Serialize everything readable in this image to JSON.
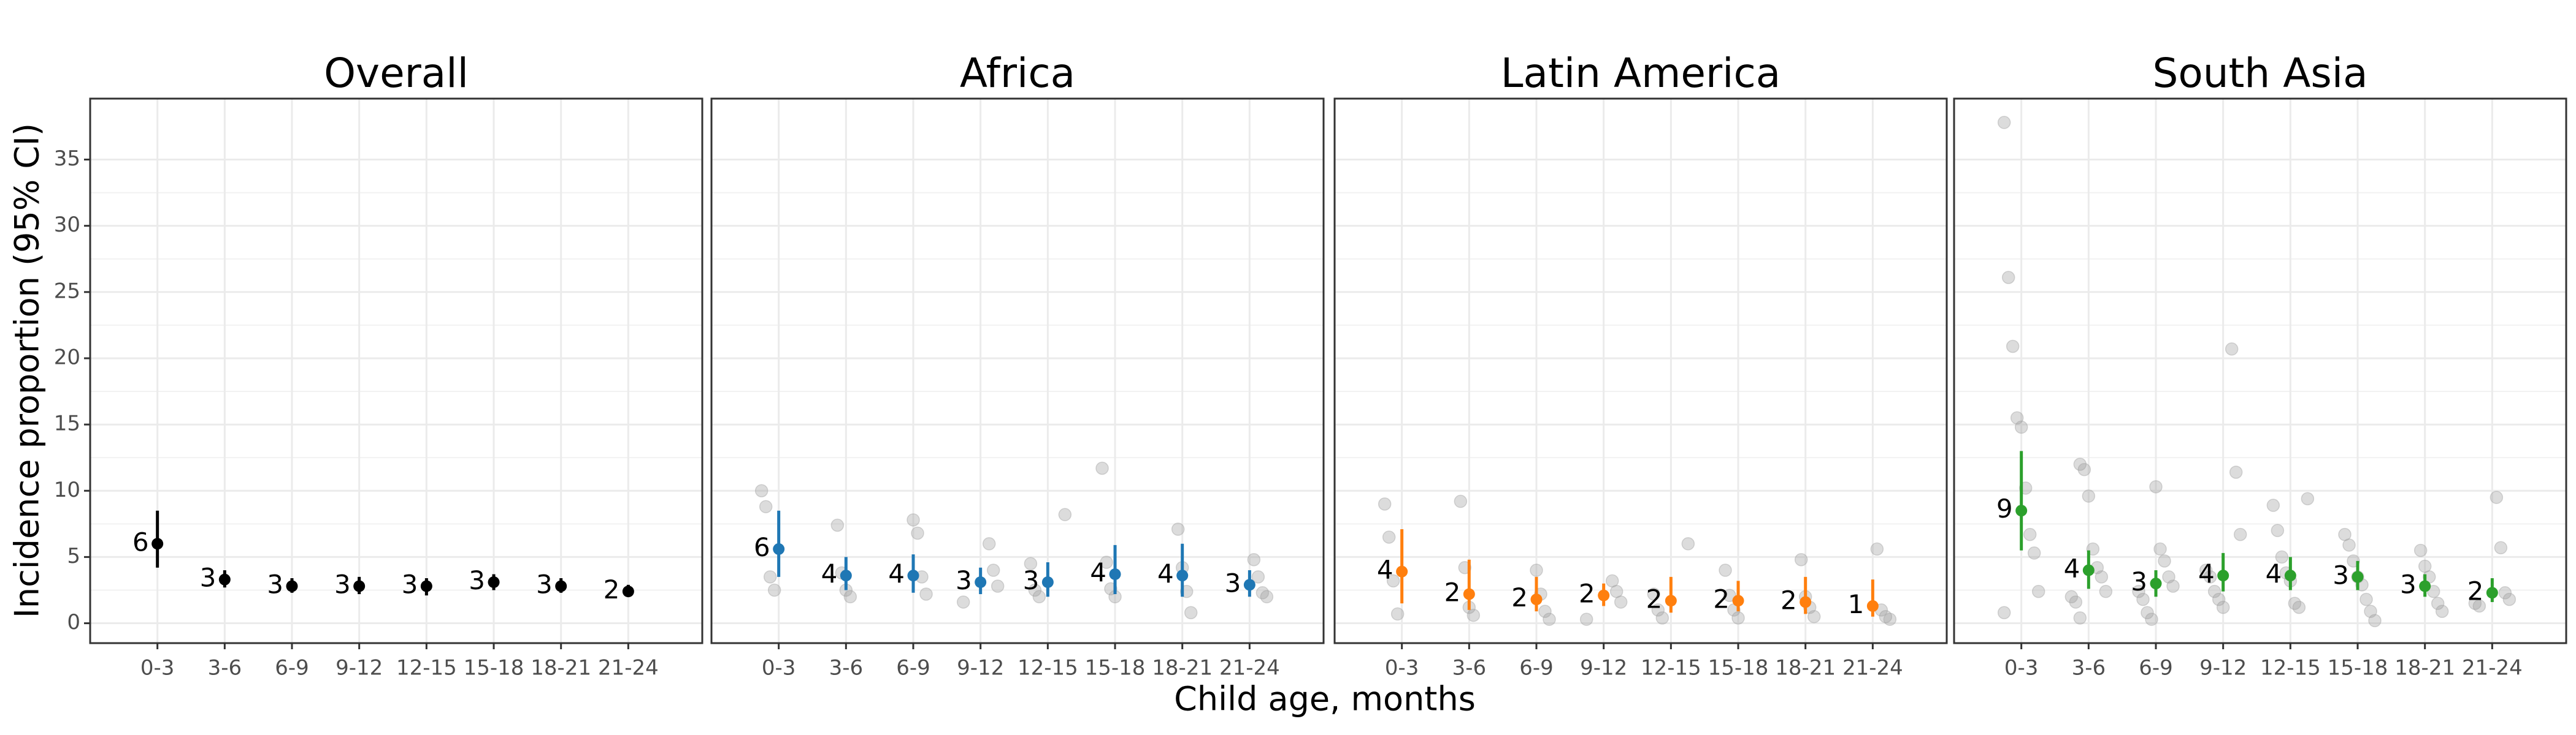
{
  "ylabel": "Incidence proportion (95% CI)",
  "xlabel": "Child age, months",
  "chart_data": [
    {
      "type": "errorbar",
      "title": "Overall",
      "color": "#000000",
      "categories": [
        "0-3",
        "3-6",
        "6-9",
        "9-12",
        "12-15",
        "15-18",
        "18-21",
        "21-24"
      ],
      "values": [
        6.0,
        3.3,
        2.8,
        2.8,
        2.8,
        3.1,
        2.8,
        2.4
      ],
      "value_labels": [
        "6",
        "3",
        "3",
        "3",
        "3",
        "3",
        "3",
        "2"
      ],
      "ci_lower": [
        4.2,
        2.7,
        2.3,
        2.2,
        2.1,
        2.5,
        2.3,
        2.0
      ],
      "ci_upper": [
        8.5,
        4.0,
        3.4,
        3.5,
        3.4,
        3.7,
        3.4,
        2.9
      ],
      "studies": [
        [],
        [],
        [],
        [],
        [],
        [],
        [],
        []
      ],
      "ylim": [
        -1.5,
        39.6
      ],
      "yticks": [
        0,
        5,
        10,
        15,
        20,
        25,
        30,
        35
      ],
      "grid": true
    },
    {
      "type": "errorbar",
      "title": "Africa",
      "color": "#1f77b4",
      "categories": [
        "0-3",
        "3-6",
        "6-9",
        "9-12",
        "12-15",
        "15-18",
        "18-21",
        "21-24"
      ],
      "values": [
        5.6,
        3.6,
        3.6,
        3.1,
        3.1,
        3.7,
        3.6,
        2.9
      ],
      "value_labels": [
        "6",
        "4",
        "4",
        "3",
        "3",
        "4",
        "4",
        "3"
      ],
      "ci_lower": [
        3.5,
        2.5,
        2.3,
        2.2,
        2.0,
        2.2,
        2.0,
        2.0
      ],
      "ci_upper": [
        8.5,
        5.0,
        5.2,
        4.2,
        4.6,
        5.9,
        6.0,
        4.0
      ],
      "studies": [
        [
          10,
          8.8,
          3.5,
          2.5
        ],
        [
          7.4,
          3.8,
          2.5,
          2.0
        ],
        [
          7.8,
          6.8,
          3.5,
          2.2
        ],
        [
          6.0,
          4.0,
          2.8,
          1.6
        ],
        [
          8.2,
          4.5,
          2.5,
          2.0
        ],
        [
          11.7,
          4.6,
          2.6,
          2.0
        ],
        [
          7.1,
          4.2,
          2.4,
          0.8
        ],
        [
          4.8,
          3.5,
          2.3,
          2.0
        ]
      ],
      "ylim": [
        -1.5,
        39.6
      ],
      "yticks": [
        0,
        5,
        10,
        15,
        20,
        25,
        30,
        35
      ],
      "grid": true
    },
    {
      "type": "errorbar",
      "title": "Latin America",
      "color": "#ff7f0e",
      "categories": [
        "0-3",
        "3-6",
        "6-9",
        "9-12",
        "12-15",
        "15-18",
        "18-21",
        "21-24"
      ],
      "values": [
        3.9,
        2.2,
        1.8,
        2.1,
        1.7,
        1.7,
        1.6,
        1.3
      ],
      "value_labels": [
        "4",
        "2",
        "2",
        "2",
        "2",
        "2",
        "2",
        "1"
      ],
      "ci_lower": [
        1.5,
        1.0,
        0.9,
        1.3,
        0.8,
        0.9,
        0.7,
        0.5
      ],
      "ci_upper": [
        7.1,
        4.8,
        3.5,
        3.0,
        3.5,
        3.2,
        3.5,
        3.3
      ],
      "studies": [
        [
          9.0,
          6.5,
          3.2,
          0.7
        ],
        [
          9.2,
          4.2,
          1.2,
          0.6
        ],
        [
          4.0,
          2.2,
          0.9,
          0.3
        ],
        [
          3.2,
          2.4,
          1.6,
          0.3
        ],
        [
          6.0,
          2.2,
          1.0,
          0.4
        ],
        [
          4.0,
          2.1,
          1.0,
          0.4
        ],
        [
          4.8,
          2.0,
          1.2,
          0.5
        ],
        [
          5.6,
          1.0,
          0.5,
          0.3
        ]
      ],
      "ylim": [
        -1.5,
        39.6
      ],
      "yticks": [
        0,
        5,
        10,
        15,
        20,
        25,
        30,
        35
      ],
      "grid": true
    },
    {
      "type": "errorbar",
      "title": "South Asia",
      "color": "#2ca02c",
      "categories": [
        "0-3",
        "3-6",
        "6-9",
        "9-12",
        "12-15",
        "15-18",
        "18-21",
        "21-24"
      ],
      "values": [
        8.5,
        4.0,
        3.0,
        3.6,
        3.6,
        3.5,
        2.8,
        2.3
      ],
      "value_labels": [
        "9",
        "4",
        "3",
        "4",
        "4",
        "3",
        "3",
        "2"
      ],
      "ci_lower": [
        5.5,
        2.6,
        2.0,
        2.4,
        2.5,
        2.5,
        2.0,
        1.6
      ],
      "ci_upper": [
        13.0,
        5.5,
        4.0,
        5.3,
        5.0,
        4.7,
        3.7,
        3.4
      ],
      "studies": [
        [
          37.8,
          26.1,
          20.9,
          15.5,
          14.8,
          10.2,
          6.7,
          5.3,
          2.4,
          0.8
        ],
        [
          12.0,
          11.6,
          9.6,
          5.6,
          4.2,
          3.5,
          2.4,
          2.0,
          1.6,
          0.4
        ],
        [
          10.3,
          5.6,
          4.7,
          3.5,
          2.8,
          2.4,
          1.8,
          0.8,
          0.3
        ],
        [
          20.7,
          11.4,
          6.7,
          4.0,
          3.5,
          2.4,
          1.8,
          1.2
        ],
        [
          9.4,
          8.9,
          7.0,
          5.0,
          3.8,
          3.2,
          1.5,
          1.2
        ],
        [
          6.7,
          5.9,
          4.7,
          3.5,
          2.9,
          1.8,
          0.9,
          0.2
        ],
        [
          5.5,
          4.3,
          3.5,
          2.4,
          1.5,
          0.9
        ],
        [
          9.5,
          5.7,
          2.3,
          1.8,
          1.5,
          1.3
        ]
      ],
      "ylim": [
        -1.5,
        39.6
      ],
      "yticks": [
        0,
        5,
        10,
        15,
        20,
        25,
        30,
        35
      ],
      "grid": true
    }
  ]
}
